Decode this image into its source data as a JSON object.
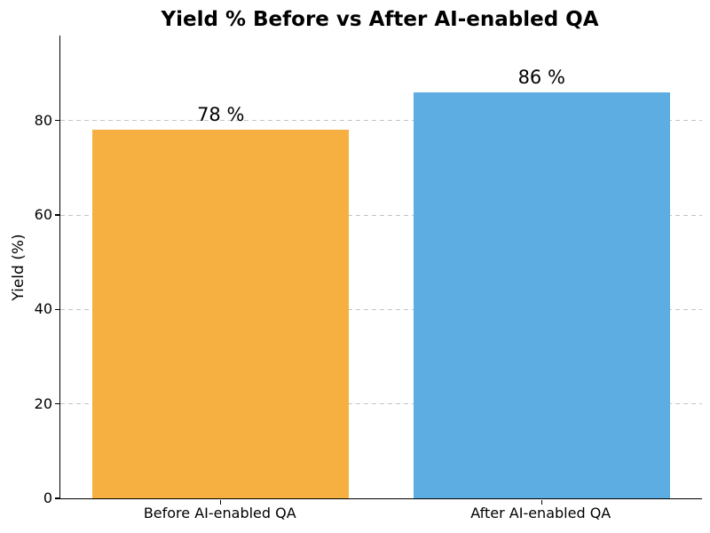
{
  "chart_data": {
    "type": "bar",
    "title": "Yield % Before vs After AI-enabled QA",
    "ylabel": "Yield (%)",
    "xlabel": "",
    "categories": [
      "Before AI-enabled QA",
      "After AI-enabled QA"
    ],
    "values": [
      78,
      86
    ],
    "value_labels": [
      "78 %",
      "86 %"
    ],
    "bar_colors": [
      "#F5B041",
      "#5DADE2"
    ],
    "bar_width_fraction": 0.8,
    "ylim": [
      0,
      98
    ],
    "yticks": [
      0,
      20,
      40,
      60,
      80
    ],
    "grid": {
      "axis": "y",
      "style": "dashed",
      "color": "#c4c4c4",
      "lines_at": [
        20,
        40,
        60,
        80
      ]
    },
    "legend": "none",
    "background": "#ffffff",
    "text_color": "#000000",
    "axis_color": "#000000"
  }
}
